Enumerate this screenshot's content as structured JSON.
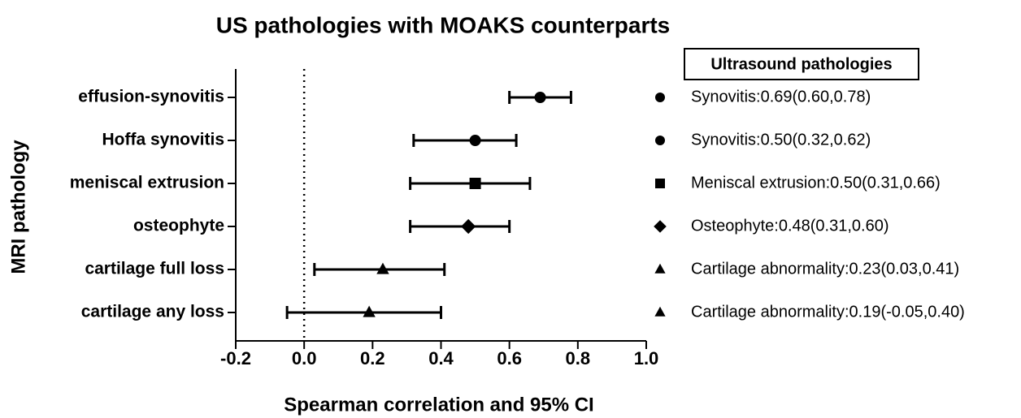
{
  "chart_data": {
    "type": "forest",
    "title": "US pathologies with MOAKS counterparts",
    "x_label": "Spearman correlation and 95% CI",
    "y_label": "MRI pathology",
    "categories": [
      "effusion-synovitis",
      "Hoffa synovitis",
      "meniscal extrusion",
      "osteophyte",
      "cartilage full loss",
      "cartilage any loss"
    ],
    "values": [
      0.69,
      0.5,
      0.5,
      0.48,
      0.23,
      0.19
    ],
    "ci_low": [
      0.6,
      0.32,
      0.31,
      0.31,
      0.03,
      -0.05
    ],
    "ci_high": [
      0.78,
      0.62,
      0.66,
      0.6,
      0.41,
      0.4
    ],
    "markers": [
      "circle",
      "circle",
      "square",
      "diamond",
      "triangle",
      "triangle"
    ],
    "color": "#000000",
    "legend_title": "Ultrasound pathologies",
    "legend_labels": [
      "Synovitis:0.69(0.60,0.78)",
      "Synovitis:0.50(0.32,0.62)",
      "Meniscal extrusion:0.50(0.31,0.66)",
      "Osteophyte:0.48(0.31,0.60)",
      "Cartilage abnormality:0.23(0.03,0.41)",
      "Cartilage abnormality:0.19(-0.05,0.40)"
    ],
    "legend_position": "right",
    "reference_line": 0,
    "xlim": [
      -0.2,
      1.0
    ],
    "xticks": [
      -0.2,
      {
        "value": 0,
        "label": "0.0"
      },
      0.2,
      0.4,
      0.6,
      0.8,
      {
        "value": 1,
        "label": "1.0"
      }
    ]
  }
}
